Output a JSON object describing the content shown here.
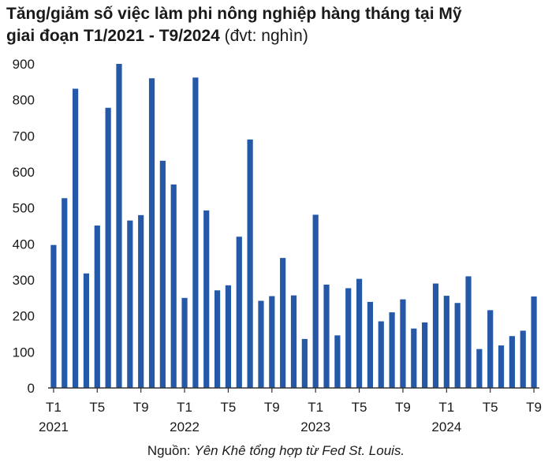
{
  "title": {
    "line1": "Tăng/giảm số việc làm phi nông nghiệp hàng tháng tại Mỹ",
    "line2_bold": "giai đoạn T1/2021 - T9/2024",
    "line2_unit": " (đvt: nghìn)"
  },
  "source": {
    "label": "Nguồn: ",
    "text": "Yên Khê tổng hợp từ Fed St. Louis."
  },
  "colors": {
    "bar": "#2559a7",
    "axis": "#333333"
  },
  "chart_data": {
    "type": "bar",
    "title": "Tăng/giảm số việc làm phi nông nghiệp hàng tháng tại Mỹ giai đoạn T1/2021 - T9/2024 (đvt: nghìn)",
    "ylim": [
      0,
      900
    ],
    "yticks": [
      0,
      100,
      200,
      300,
      400,
      500,
      600,
      700,
      800,
      900
    ],
    "grid": false,
    "x_tick_labels": [
      {
        "index": 0,
        "label": "T1"
      },
      {
        "index": 4,
        "label": "T5"
      },
      {
        "index": 8,
        "label": "T9"
      },
      {
        "index": 12,
        "label": "T1"
      },
      {
        "index": 16,
        "label": "T5"
      },
      {
        "index": 20,
        "label": "T9"
      },
      {
        "index": 24,
        "label": "T1"
      },
      {
        "index": 28,
        "label": "T5"
      },
      {
        "index": 32,
        "label": "T9"
      },
      {
        "index": 36,
        "label": "T1"
      },
      {
        "index": 40,
        "label": "T5"
      },
      {
        "index": 44,
        "label": "T9"
      }
    ],
    "year_labels": [
      {
        "index": 0,
        "label": "2021"
      },
      {
        "index": 12,
        "label": "2022"
      },
      {
        "index": 24,
        "label": "2023"
      },
      {
        "index": 36,
        "label": "2024"
      }
    ],
    "categories": [
      "T1/2021",
      "T2/2021",
      "T3/2021",
      "T4/2021",
      "T5/2021",
      "T6/2021",
      "T7/2021",
      "T8/2021",
      "T9/2021",
      "T10/2021",
      "T11/2021",
      "T12/2021",
      "T1/2022",
      "T2/2022",
      "T3/2022",
      "T4/2022",
      "T5/2022",
      "T6/2022",
      "T7/2022",
      "T8/2022",
      "T9/2022",
      "T10/2022",
      "T11/2022",
      "T12/2022",
      "T1/2023",
      "T2/2023",
      "T3/2023",
      "T4/2023",
      "T5/2023",
      "T6/2023",
      "T7/2023",
      "T8/2023",
      "T9/2023",
      "T10/2023",
      "T11/2023",
      "T12/2023",
      "T1/2024",
      "T2/2024",
      "T3/2024",
      "T4/2024",
      "T5/2024",
      "T6/2024",
      "T7/2024",
      "T8/2024",
      "T9/2024"
    ],
    "values": [
      397,
      527,
      831,
      318,
      451,
      778,
      900,
      465,
      480,
      860,
      631,
      565,
      250,
      862,
      493,
      271,
      285,
      420,
      690,
      242,
      255,
      361,
      257,
      136,
      481,
      287,
      146,
      277,
      303,
      239,
      185,
      210,
      246,
      165,
      182,
      290,
      256,
      236,
      310,
      108,
      216,
      118,
      144,
      159,
      254
    ]
  }
}
